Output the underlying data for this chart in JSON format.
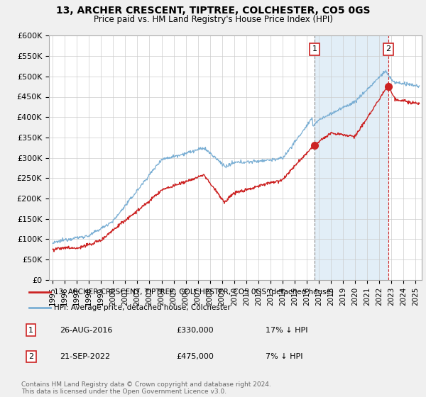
{
  "title": "13, ARCHER CRESCENT, TIPTREE, COLCHESTER, CO5 0GS",
  "subtitle": "Price paid vs. HM Land Registry's House Price Index (HPI)",
  "ylim": [
    0,
    600000
  ],
  "yticks": [
    0,
    50000,
    100000,
    150000,
    200000,
    250000,
    300000,
    350000,
    400000,
    450000,
    500000,
    550000,
    600000
  ],
  "ytick_labels": [
    "£0",
    "£50K",
    "£100K",
    "£150K",
    "£200K",
    "£250K",
    "£300K",
    "£350K",
    "£400K",
    "£450K",
    "£500K",
    "£550K",
    "£600K"
  ],
  "hpi_color": "#7bafd4",
  "hpi_fill_color": "#d6e8f5",
  "price_color": "#cc2222",
  "annotation_box_color": "#cc2222",
  "vline1_color": "#888888",
  "vline2_color": "#cc2222",
  "sale1_x": 2016.65,
  "sale1_y": 330000,
  "sale1_label": "1",
  "sale2_x": 2022.72,
  "sale2_y": 475000,
  "sale2_label": "2",
  "legend_line1": "13, ARCHER CRESCENT, TIPTREE, COLCHESTER, CO5 0GS (detached house)",
  "legend_line2": "HPI: Average price, detached house, Colchester",
  "ann1_num": "1",
  "ann1_date": "26-AUG-2016",
  "ann1_price": "£330,000",
  "ann1_hpi": "17% ↓ HPI",
  "ann2_num": "2",
  "ann2_date": "21-SEP-2022",
  "ann2_price": "£475,000",
  "ann2_hpi": "7% ↓ HPI",
  "footer": "Contains HM Land Registry data © Crown copyright and database right 2024.\nThis data is licensed under the Open Government Licence v3.0.",
  "bg_color": "#f0f0f0",
  "plot_bg_color": "#ffffff",
  "xmin": 1995,
  "xmax": 2025
}
